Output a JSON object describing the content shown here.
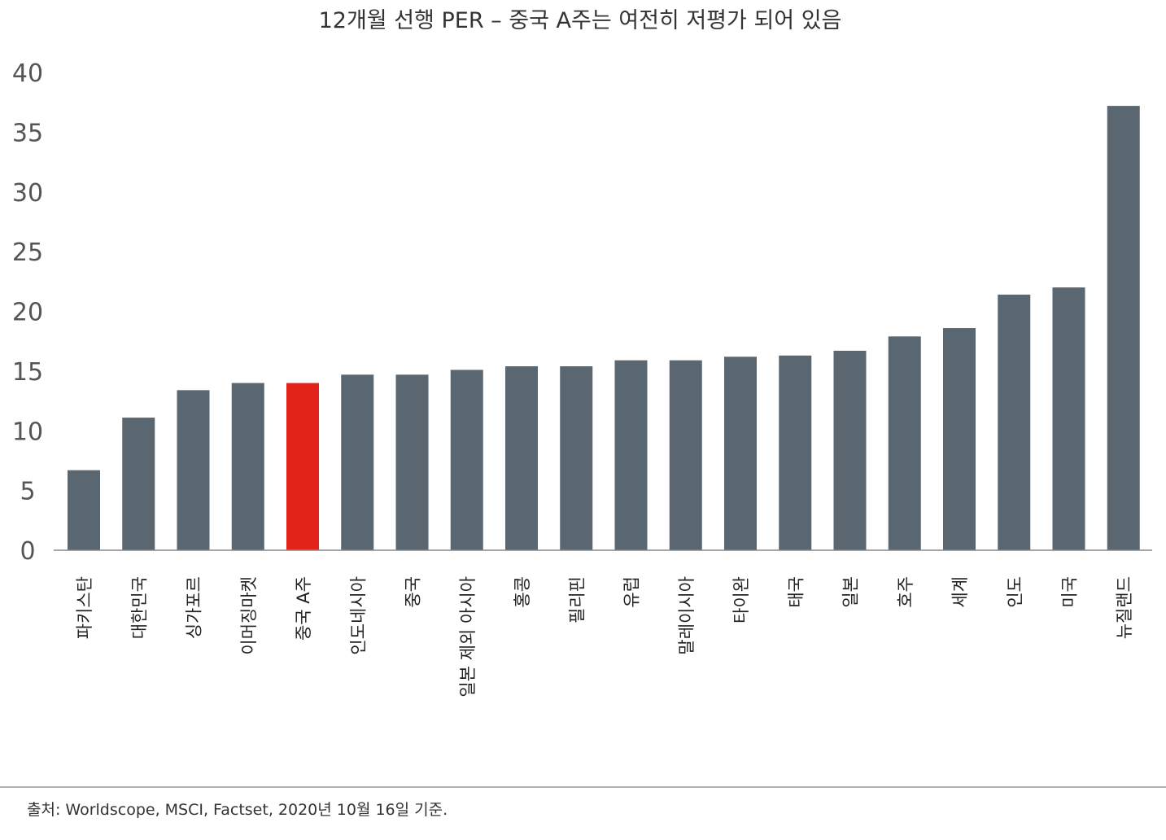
{
  "chart_data": {
    "type": "bar",
    "title": "12개월 선행 PER – 중국 A주는 여전히 저평가 되어 있음",
    "xlabel": "",
    "ylabel": "",
    "ylim": [
      0,
      40
    ],
    "yticks": [
      "0",
      "5",
      "10",
      "15",
      "20",
      "25",
      "30",
      "35",
      "40"
    ],
    "grid": false,
    "categories": [
      "파키스탄",
      "대한민국",
      "싱가포르",
      "이머징마켓",
      "중국 A주",
      "인도네시아",
      "중국",
      "일본 제외 아시아",
      "홍콩",
      "필리핀",
      "유럽",
      "말레이시아",
      "타이완",
      "태국",
      "일본",
      "호주",
      "세계",
      "인도",
      "미국",
      "뉴질랜드"
    ],
    "values": [
      6.7,
      11.1,
      13.4,
      14.0,
      14.0,
      14.7,
      14.7,
      15.1,
      15.4,
      15.4,
      15.9,
      15.9,
      16.2,
      16.3,
      16.7,
      17.9,
      18.6,
      21.4,
      22.0,
      37.2
    ],
    "highlight_category": "중국 A주",
    "colors": {
      "bar": "#5a6670",
      "highlight": "#e2231a",
      "axis": "#888888"
    }
  },
  "source": "출처: Worldscope, MSCI, Factset, 2020년 10월 16일 기준."
}
